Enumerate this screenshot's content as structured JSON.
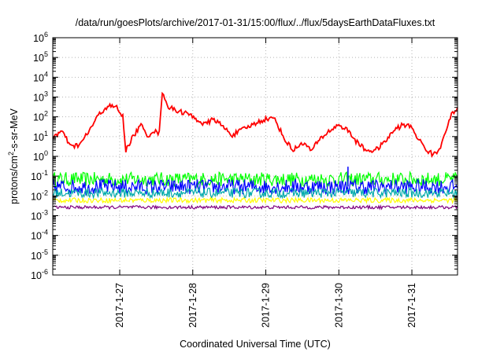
{
  "chart_data": {
    "type": "line",
    "title": "/data/run/goesPlots/archive/2017-01-31/15:00/flux/../flux/5daysEarthDataFluxes.txt",
    "xlabel": "Coordinated Universal Time (UTC)",
    "ylabel": {
      "base": "protons/cm",
      "sup": "2",
      "rest": "-s-sr-MeV"
    },
    "yscale": "log",
    "xlim": [
      "2017-01-26T02:00",
      "2017-01-31T15:00"
    ],
    "ylim_exponents": [
      -6,
      6
    ],
    "y_tick_labels": [
      {
        "base": "10",
        "exp": "-6"
      },
      {
        "base": "10",
        "exp": "-5"
      },
      {
        "base": "10",
        "exp": "-4"
      },
      {
        "base": "10",
        "exp": "-3"
      },
      {
        "base": "10",
        "exp": "-2"
      },
      {
        "base": "10",
        "exp": "-1"
      },
      {
        "base": "10",
        "exp": "0"
      },
      {
        "base": "10",
        "exp": "1"
      },
      {
        "base": "10",
        "exp": "2"
      },
      {
        "base": "10",
        "exp": "3"
      },
      {
        "base": "10",
        "exp": "4"
      },
      {
        "base": "10",
        "exp": "5"
      },
      {
        "base": "10",
        "exp": "6"
      }
    ],
    "x_ticks": [
      {
        "label": "2017-1-27",
        "time": "2017-01-27T00:00"
      },
      {
        "label": "2017-1-28",
        "time": "2017-01-28T00:00"
      },
      {
        "label": "2017-1-29",
        "time": "2017-01-29T00:00"
      },
      {
        "label": "2017-1-30",
        "time": "2017-01-30T00:00"
      },
      {
        "label": "2017-1-31",
        "time": "2017-01-31T00:00"
      }
    ],
    "grid": true,
    "legend": "none",
    "series": [
      {
        "color": "#ff0000",
        "points": [
          [
            "2017-01-26T02:00",
            10
          ],
          [
            "2017-01-26T05:00",
            18
          ],
          [
            "2017-01-26T08:00",
            3
          ],
          [
            "2017-01-26T11:00",
            4
          ],
          [
            "2017-01-26T14:00",
            20
          ],
          [
            "2017-01-26T17:00",
            120
          ],
          [
            "2017-01-26T20:00",
            350
          ],
          [
            "2017-01-26T23:00",
            300
          ],
          [
            "2017-01-27T01:00",
            100
          ],
          [
            "2017-01-27T02:00",
            2
          ],
          [
            "2017-01-27T04:00",
            8
          ],
          [
            "2017-01-27T07:00",
            40
          ],
          [
            "2017-01-27T09:00",
            10
          ],
          [
            "2017-01-27T11:00",
            20
          ],
          [
            "2017-01-27T13:00",
            15
          ],
          [
            "2017-01-27T14:00",
            2000
          ],
          [
            "2017-01-27T16:00",
            300
          ],
          [
            "2017-01-27T19:00",
            200
          ],
          [
            "2017-01-27T22:00",
            150
          ],
          [
            "2017-01-28T01:00",
            80
          ],
          [
            "2017-01-28T04:00",
            40
          ],
          [
            "2017-01-28T07:00",
            80
          ],
          [
            "2017-01-28T10:00",
            30
          ],
          [
            "2017-01-28T13:00",
            12
          ],
          [
            "2017-01-28T17:00",
            25
          ],
          [
            "2017-01-28T21:00",
            50
          ],
          [
            "2017-01-29T00:00",
            80
          ],
          [
            "2017-01-29T03:00",
            80
          ],
          [
            "2017-01-29T06:00",
            8
          ],
          [
            "2017-01-29T09:00",
            2
          ],
          [
            "2017-01-29T12:00",
            5
          ],
          [
            "2017-01-29T15:00",
            2
          ],
          [
            "2017-01-29T18:00",
            8
          ],
          [
            "2017-01-29T21:00",
            20
          ],
          [
            "2017-01-30T00:00",
            40
          ],
          [
            "2017-01-30T03:00",
            20
          ],
          [
            "2017-01-30T06:00",
            5
          ],
          [
            "2017-01-30T09:00",
            2
          ],
          [
            "2017-01-30T12:00",
            2
          ],
          [
            "2017-01-30T15:00",
            5
          ],
          [
            "2017-01-30T18:00",
            20
          ],
          [
            "2017-01-30T21:00",
            40
          ],
          [
            "2017-01-31T00:00",
            30
          ],
          [
            "2017-01-31T02:00",
            8
          ],
          [
            "2017-01-31T05:00",
            2
          ],
          [
            "2017-01-31T07:00",
            1.2
          ],
          [
            "2017-01-31T09:00",
            2
          ],
          [
            "2017-01-31T11:00",
            20
          ],
          [
            "2017-01-31T13:00",
            120
          ],
          [
            "2017-01-31T15:00",
            300
          ]
        ]
      },
      {
        "color": "#00ff00",
        "band": [
          0.03,
          0.16
        ]
      },
      {
        "color": "#0000ff",
        "band": [
          0.012,
          0.07
        ]
      },
      {
        "color": "#00aaaa",
        "band": [
          0.008,
          0.025
        ]
      },
      {
        "color": "#ffff00",
        "band": [
          0.0045,
          0.008
        ]
      },
      {
        "color": "#800080",
        "band": [
          0.0022,
          0.0032
        ]
      }
    ]
  }
}
